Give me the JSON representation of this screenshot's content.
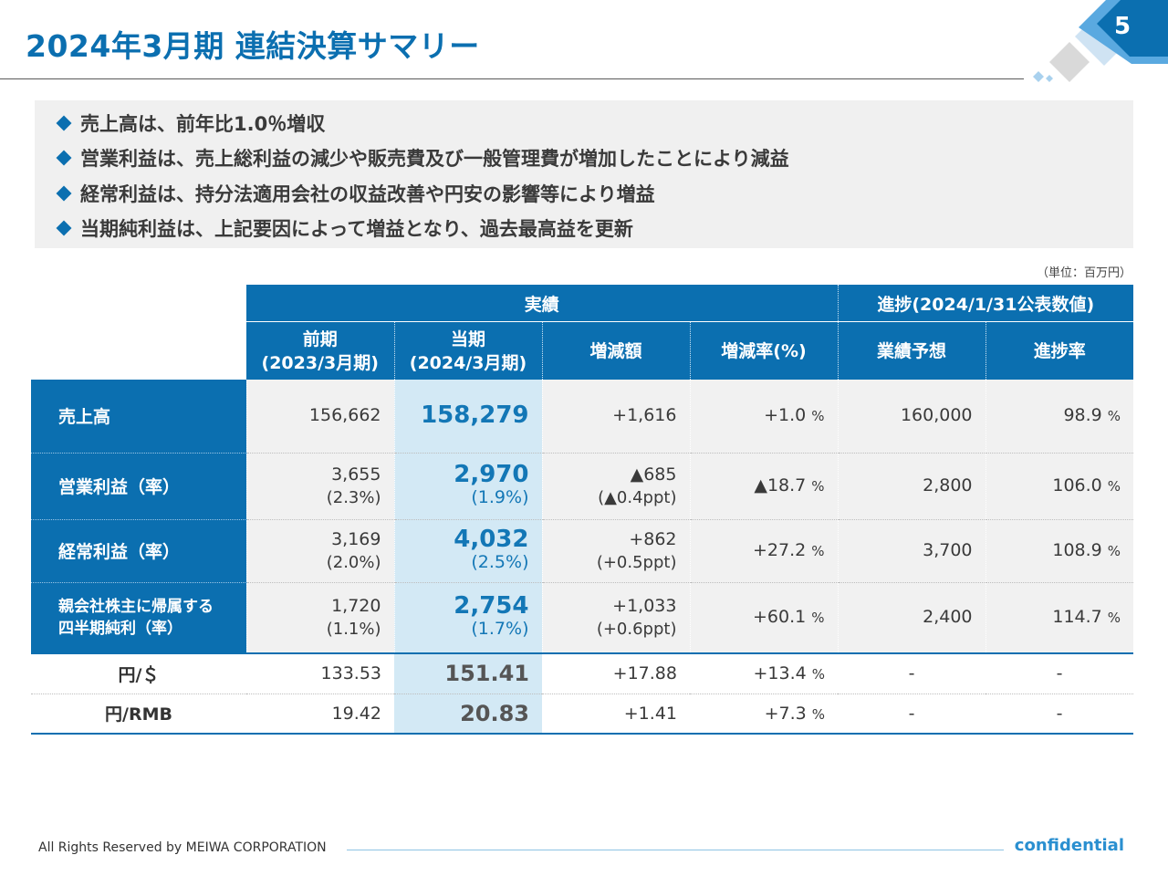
{
  "header": {
    "title": "2024年3月期 連結決算サマリー",
    "page_number": "5"
  },
  "summary": {
    "items": [
      "売上高は、前年比1.0％増収",
      "営業利益は、売上総利益の減少や販売費及び一般管理費が増加したことにより減益",
      "経常利益は、持分法適用会社の収益改善や円安の影響等により増益",
      "当期純利益は、上記要因によって増益となり、過去最高益を更新"
    ]
  },
  "table": {
    "unit_note": "（単位：百万円）",
    "group_headers": {
      "results": "実績",
      "progress": "進捗(2024/1/31公表数値)"
    },
    "columns": {
      "prev_line1": "前期",
      "prev_line2": "(2023/3月期)",
      "curr_line1": "当期",
      "curr_line2": "(2024/3月期)",
      "change": "増減額",
      "change_rate": "増減率(%)",
      "forecast": "業績予想",
      "progress_rate": "進捗率"
    },
    "pct_unit": "%",
    "rows": [
      {
        "label": "売上高",
        "prev": "156,662",
        "prev_sub": "",
        "curr": "158,279",
        "curr_sub": "",
        "change": "+1,616",
        "change_sub": "",
        "rate": "+1.0",
        "forecast": "160,000",
        "progress": "98.9"
      },
      {
        "label": "営業利益（率）",
        "prev": "3,655",
        "prev_sub": "(2.3%)",
        "curr": "2,970",
        "curr_sub": "(1.9%)",
        "change": "▲685",
        "change_sub": "(▲0.4ppt)",
        "rate": "▲18.7",
        "forecast": "2,800",
        "progress": "106.0"
      },
      {
        "label": "経常利益（率）",
        "prev": "3,169",
        "prev_sub": "(2.0%)",
        "curr": "4,032",
        "curr_sub": "(2.5%)",
        "change": "+862",
        "change_sub": "(+0.5ppt)",
        "rate": "+27.2",
        "forecast": "3,700",
        "progress": "108.9"
      },
      {
        "label_line1": "親会社株主に帰属する",
        "label_line2": "四半期純利（率）",
        "prev": "1,720",
        "prev_sub": "(1.1%)",
        "curr": "2,754",
        "curr_sub": "(1.7%)",
        "change": "+1,033",
        "change_sub": "(+0.6ppt)",
        "rate": "+60.1",
        "forecast": "2,400",
        "progress": "114.7"
      }
    ],
    "fx_rows": [
      {
        "label": "円/＄",
        "prev": "133.53",
        "curr": "151.41",
        "change": "+17.88",
        "rate": "+13.4",
        "forecast": "-",
        "progress": "-"
      },
      {
        "label": "円/RMB",
        "prev": "19.42",
        "curr": "20.83",
        "change": "+1.41",
        "rate": "+7.3",
        "forecast": "-",
        "progress": "-"
      }
    ]
  },
  "footer": {
    "copyright": "All Rights Reserved by MEIWA CORPORATION",
    "confidential": "confidential"
  },
  "colors": {
    "primary_blue": "#0b6fb0",
    "current_column": "#d3e9f5",
    "summary_bg": "#f0f0f0"
  }
}
